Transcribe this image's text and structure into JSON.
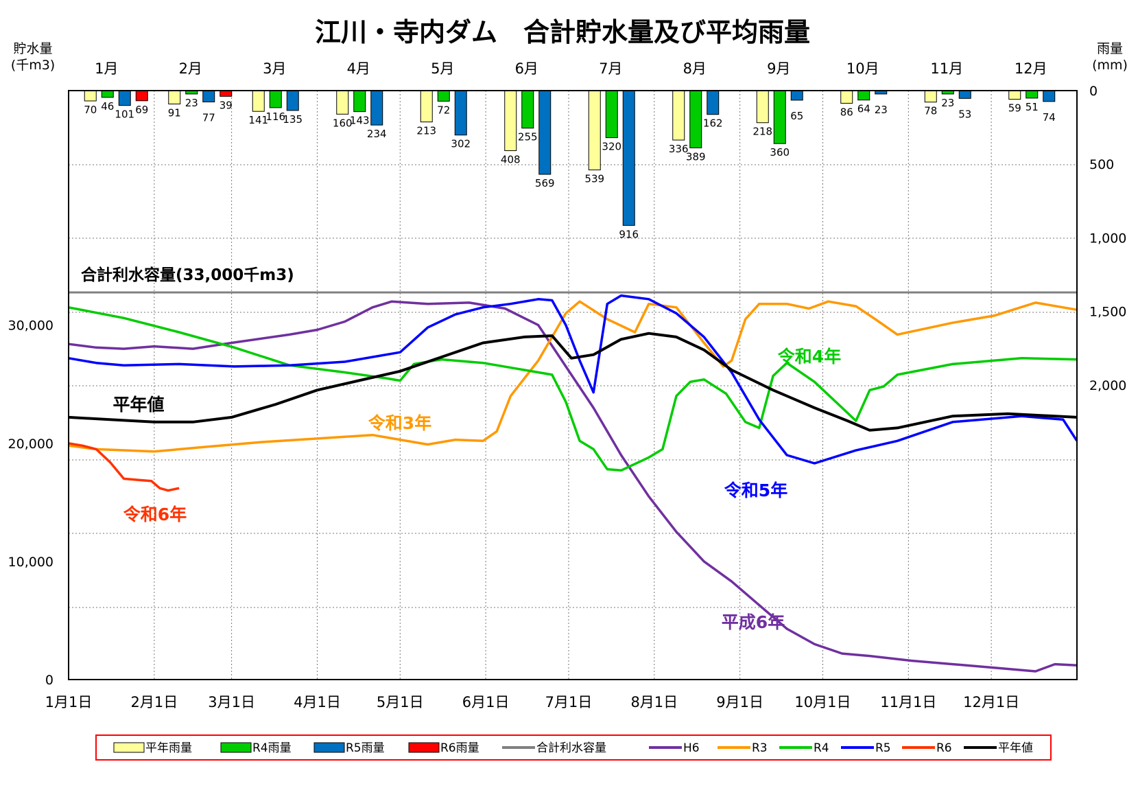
{
  "chart_data": {
    "type": "bar+line",
    "title": "江川・寺内ダム　合計貯水量及び平均雨量",
    "left_axis": {
      "label_line1": "貯水量",
      "label_line2": "(千m3)",
      "ticks": [
        0,
        10000,
        20000,
        30000
      ],
      "tick_labels": [
        "0",
        "10,000",
        "20,000",
        "30,000"
      ]
    },
    "right_axis": {
      "label_line1": "雨量",
      "label_line2": "(mm)",
      "ticks": [
        0,
        500,
        1000,
        1500,
        2000
      ],
      "tick_labels": [
        "0",
        "500",
        "1,000",
        "1,500",
        "2,000"
      ],
      "inverted": true
    },
    "months": [
      "1月",
      "2月",
      "3月",
      "4月",
      "5月",
      "6月",
      "7月",
      "8月",
      "9月",
      "10月",
      "11月",
      "12月"
    ],
    "x_tick_labels": [
      "1月1日",
      "2月1日",
      "3月1日",
      "4月1日",
      "5月1日",
      "6月1日",
      "7月1日",
      "8月1日",
      "9月1日",
      "10月1日",
      "11月1日",
      "12月1日"
    ],
    "capacity": {
      "value": 33000,
      "label": "合計利水容量(33,000千m3)"
    },
    "rain_series": [
      {
        "key": "avg",
        "name": "平年雨量",
        "color": "#ffff99",
        "values": [
          70,
          91,
          141,
          160,
          213,
          408,
          539,
          336,
          218,
          86,
          78,
          59
        ]
      },
      {
        "key": "r4",
        "name": "R4雨量",
        "color": "#00cc00",
        "values": [
          46,
          23,
          116,
          143,
          72,
          255,
          320,
          389,
          360,
          64,
          23,
          51
        ]
      },
      {
        "key": "r5",
        "name": "R5雨量",
        "color": "#0070c0",
        "values": [
          101,
          77,
          135,
          234,
          302,
          569,
          916,
          162,
          65,
          23,
          53,
          74
        ]
      },
      {
        "key": "r6",
        "name": "R6雨量",
        "color": "#ff0000",
        "values": [
          69,
          39,
          null,
          null,
          null,
          null,
          null,
          null,
          null,
          null,
          null,
          null
        ]
      }
    ],
    "storage_series": [
      {
        "key": "h6",
        "name": "H6",
        "label": "平成6年",
        "color": "#7030a0",
        "points": [
          [
            0,
            28400
          ],
          [
            10,
            28100
          ],
          [
            20,
            28000
          ],
          [
            31,
            28200
          ],
          [
            45,
            28000
          ],
          [
            59,
            28500
          ],
          [
            80,
            29200
          ],
          [
            90,
            29600
          ],
          [
            100,
            30300
          ],
          [
            110,
            31500
          ],
          [
            117,
            32000
          ],
          [
            130,
            31800
          ],
          [
            145,
            31900
          ],
          [
            158,
            31400
          ],
          [
            170,
            30000
          ],
          [
            180,
            26500
          ],
          [
            190,
            23000
          ],
          [
            200,
            19000
          ],
          [
            210,
            15500
          ],
          [
            220,
            12500
          ],
          [
            230,
            10000
          ],
          [
            240,
            8300
          ],
          [
            250,
            6300
          ],
          [
            260,
            4300
          ],
          [
            270,
            3000
          ],
          [
            280,
            2200
          ],
          [
            290,
            2000
          ],
          [
            305,
            1600
          ],
          [
            320,
            1300
          ],
          [
            335,
            1000
          ],
          [
            350,
            700
          ],
          [
            357,
            1300
          ],
          [
            365,
            1200
          ]
        ]
      },
      {
        "key": "r3",
        "name": "R3",
        "label": "令和3年",
        "color": "#ff9900",
        "points": [
          [
            0,
            19800
          ],
          [
            10,
            19500
          ],
          [
            31,
            19300
          ],
          [
            50,
            19700
          ],
          [
            70,
            20100
          ],
          [
            90,
            20400
          ],
          [
            110,
            20700
          ],
          [
            120,
            20300
          ],
          [
            130,
            19900
          ],
          [
            140,
            20300
          ],
          [
            150,
            20200
          ],
          [
            155,
            21000
          ],
          [
            160,
            24000
          ],
          [
            170,
            27000
          ],
          [
            180,
            31000
          ],
          [
            185,
            32000
          ],
          [
            195,
            30500
          ],
          [
            205,
            29400
          ],
          [
            210,
            31800
          ],
          [
            220,
            31500
          ],
          [
            230,
            28500
          ],
          [
            237,
            26500
          ],
          [
            240,
            27000
          ],
          [
            245,
            30500
          ],
          [
            250,
            31800
          ],
          [
            260,
            31800
          ],
          [
            268,
            31400
          ],
          [
            275,
            32000
          ],
          [
            285,
            31600
          ],
          [
            292,
            30500
          ],
          [
            300,
            29200
          ],
          [
            320,
            30200
          ],
          [
            335,
            30800
          ],
          [
            350,
            31900
          ],
          [
            365,
            31300
          ]
        ]
      },
      {
        "key": "r4",
        "name": "R4",
        "label": "令和4年",
        "color": "#00cc00",
        "points": [
          [
            0,
            31500
          ],
          [
            20,
            30600
          ],
          [
            40,
            29400
          ],
          [
            60,
            28100
          ],
          [
            80,
            26600
          ],
          [
            100,
            26000
          ],
          [
            115,
            25500
          ],
          [
            120,
            25300
          ],
          [
            125,
            26700
          ],
          [
            135,
            27100
          ],
          [
            150,
            26800
          ],
          [
            165,
            26200
          ],
          [
            175,
            25800
          ],
          [
            180,
            23500
          ],
          [
            185,
            20200
          ],
          [
            190,
            19500
          ],
          [
            195,
            17800
          ],
          [
            200,
            17700
          ],
          [
            210,
            18800
          ],
          [
            215,
            19500
          ],
          [
            220,
            24000
          ],
          [
            225,
            25200
          ],
          [
            230,
            25400
          ],
          [
            238,
            24200
          ],
          [
            245,
            21800
          ],
          [
            250,
            21300
          ],
          [
            255,
            25700
          ],
          [
            260,
            26800
          ],
          [
            270,
            25200
          ],
          [
            280,
            23000
          ],
          [
            285,
            21900
          ],
          [
            290,
            24500
          ],
          [
            295,
            24800
          ],
          [
            300,
            25800
          ],
          [
            320,
            26700
          ],
          [
            345,
            27200
          ],
          [
            365,
            27100
          ]
        ]
      },
      {
        "key": "r5",
        "name": "R5",
        "label": "令和5年",
        "color": "#0000ff",
        "points": [
          [
            0,
            27200
          ],
          [
            10,
            26800
          ],
          [
            20,
            26600
          ],
          [
            40,
            26700
          ],
          [
            60,
            26500
          ],
          [
            80,
            26600
          ],
          [
            100,
            26900
          ],
          [
            110,
            27300
          ],
          [
            120,
            27700
          ],
          [
            130,
            29800
          ],
          [
            140,
            30900
          ],
          [
            150,
            31500
          ],
          [
            160,
            31800
          ],
          [
            170,
            32200
          ],
          [
            175,
            32100
          ],
          [
            180,
            30000
          ],
          [
            185,
            27000
          ],
          [
            190,
            24300
          ],
          [
            195,
            31800
          ],
          [
            200,
            32500
          ],
          [
            210,
            32200
          ],
          [
            220,
            31000
          ],
          [
            230,
            29000
          ],
          [
            240,
            26000
          ],
          [
            250,
            22000
          ],
          [
            260,
            19000
          ],
          [
            270,
            18300
          ],
          [
            285,
            19400
          ],
          [
            300,
            20200
          ],
          [
            320,
            21800
          ],
          [
            345,
            22300
          ],
          [
            360,
            22000
          ],
          [
            365,
            20200
          ]
        ]
      },
      {
        "key": "r6",
        "name": "R6",
        "label": "令和6年",
        "color": "#ff3300",
        "points": [
          [
            0,
            20000
          ],
          [
            5,
            19800
          ],
          [
            10,
            19500
          ],
          [
            15,
            18400
          ],
          [
            20,
            17000
          ],
          [
            25,
            16900
          ],
          [
            30,
            16800
          ],
          [
            33,
            16200
          ],
          [
            36,
            16000
          ],
          [
            40,
            16200
          ]
        ]
      },
      {
        "key": "avg",
        "name": "平年値",
        "label": "平年値",
        "color": "#000000",
        "points": [
          [
            0,
            22200
          ],
          [
            15,
            22000
          ],
          [
            31,
            21800
          ],
          [
            45,
            21800
          ],
          [
            59,
            22200
          ],
          [
            75,
            23300
          ],
          [
            90,
            24500
          ],
          [
            105,
            25300
          ],
          [
            120,
            26100
          ],
          [
            135,
            27300
          ],
          [
            150,
            28500
          ],
          [
            165,
            29000
          ],
          [
            175,
            29100
          ],
          [
            182,
            27200
          ],
          [
            190,
            27500
          ],
          [
            200,
            28800
          ],
          [
            210,
            29300
          ],
          [
            220,
            29000
          ],
          [
            230,
            27900
          ],
          [
            240,
            26200
          ],
          [
            255,
            24500
          ],
          [
            270,
            23000
          ],
          [
            282,
            21900
          ],
          [
            290,
            21100
          ],
          [
            300,
            21300
          ],
          [
            320,
            22300
          ],
          [
            340,
            22500
          ],
          [
            365,
            22200
          ]
        ]
      }
    ],
    "legend": [
      "平年雨量",
      "R4雨量",
      "R5雨量",
      "R6雨量",
      "合計利水容量",
      "H6",
      "R3",
      "R4",
      "R5",
      "R6",
      "平年値"
    ],
    "legend_placement": "bottom",
    "grid": true
  }
}
